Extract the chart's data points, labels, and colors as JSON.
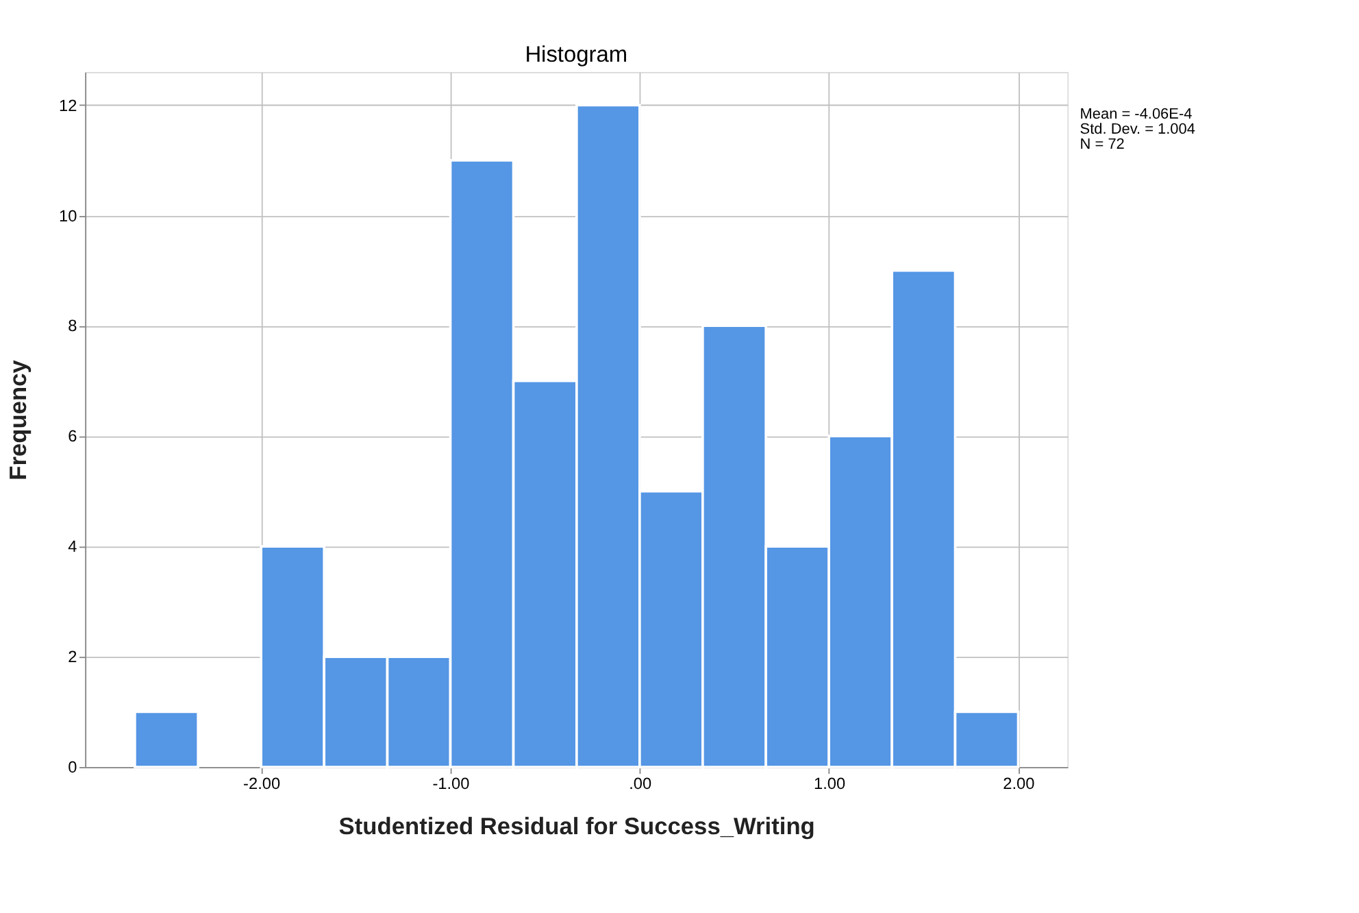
{
  "chart_data": {
    "type": "histogram",
    "title": "Histogram",
    "xlabel": "Studentized Residual for Success_Writing",
    "ylabel": "Frequency",
    "bins": [
      -2.667,
      -2.333,
      -2.0,
      -1.667,
      -1.333,
      -1.0,
      -0.667,
      -0.333,
      0.0,
      0.333,
      0.667,
      1.0,
      1.333,
      1.667,
      2.0
    ],
    "values": [
      1,
      0,
      4,
      2,
      2,
      11,
      7,
      12,
      5,
      8,
      4,
      6,
      9,
      1
    ],
    "color": "#5596e5",
    "xlim": [
      -2.93,
      2.26
    ],
    "xticks": [
      {
        "value": -2,
        "label": "-2.00"
      },
      {
        "value": -1,
        "label": "-1.00"
      },
      {
        "value": 0,
        "label": ".00"
      },
      {
        "value": 1,
        "label": "1.00"
      },
      {
        "value": 2,
        "label": "2.00"
      }
    ],
    "ylim": [
      0,
      12.6
    ],
    "yticks": [
      0,
      2,
      4,
      6,
      8,
      10,
      12
    ],
    "grid": true,
    "annotations": [
      "Mean = -4.06E-4",
      "Std. Dev. = 1.004",
      "N = 72"
    ]
  }
}
